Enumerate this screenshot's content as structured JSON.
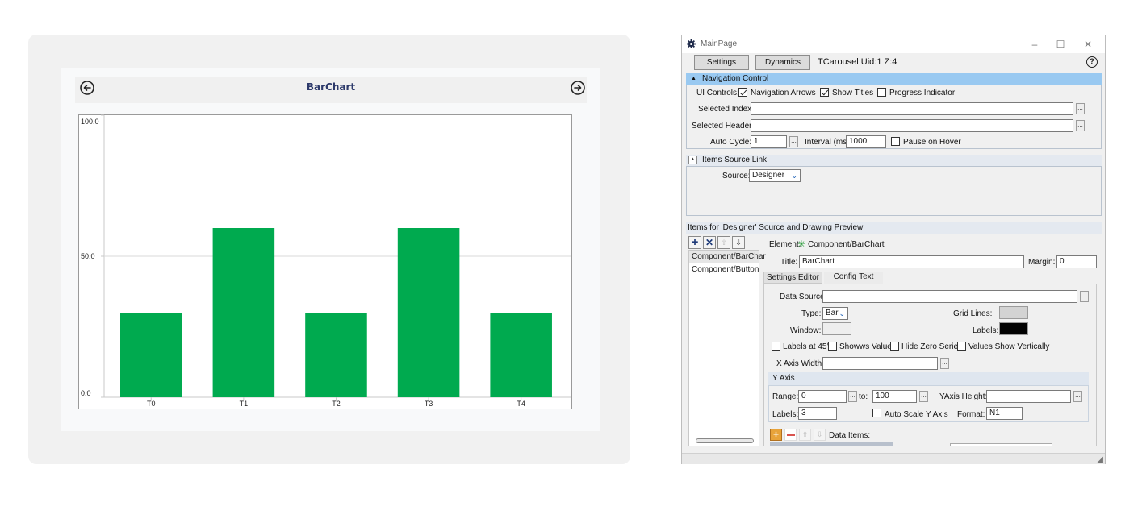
{
  "preview": {
    "title": "BarChart",
    "prev_arrow": "arrow-left-circle-icon",
    "next_arrow": "arrow-right-circle-icon"
  },
  "chart_data": {
    "type": "bar",
    "categories": [
      "T0",
      "T1",
      "T2",
      "T3",
      "T4"
    ],
    "values": [
      30,
      60,
      30,
      60,
      30
    ],
    "ylim": [
      0,
      100
    ],
    "ytick_labels": [
      "0.0",
      "50.0",
      "100.0"
    ],
    "grid": true,
    "bar_color": "#00aa4f"
  },
  "window": {
    "title": "MainPage",
    "app_icon": "gear-icon",
    "minimize": "–",
    "maximize": "☐",
    "close": "✕",
    "settings_btn": "Settings",
    "dynamics_btn": "Dynamics",
    "component_info": "TCarousel Uid:1 Z:4",
    "help_icon": "?"
  },
  "navigation": {
    "header": "Navigation Control",
    "ui_controls_label": "UI Controls:",
    "nav_arrows": {
      "label": "Navigation Arrows",
      "checked": true
    },
    "show_titles": {
      "label": "Show Titles",
      "checked": true
    },
    "progress_indicator": {
      "label": "Progress Indicator",
      "checked": false
    },
    "selected_index_label": "Selected Index:",
    "selected_index_value": "",
    "selected_header_label": "Selected Header:",
    "selected_header_value": "",
    "auto_cycle_label": "Auto Cycle:",
    "auto_cycle_value": "1",
    "interval_label": "Interval (ms)",
    "interval_value": "1000",
    "pause_on_hover": {
      "label": "Pause on Hover",
      "checked": false
    }
  },
  "items_source": {
    "header": "Items Source Link",
    "source_label": "Source:",
    "source_value": "Designer"
  },
  "items": {
    "header": "Items for 'Designer' Source and Drawing Preview",
    "list": [
      "Component/BarChar",
      "Component/Button"
    ],
    "element_label": "Element:",
    "element_value": "Component/BarChart",
    "title_label": "Title:",
    "title_value": "BarChart",
    "margin_label": "Margin:",
    "margin_value": "0",
    "tabs": [
      "Settings Editor",
      "Config Text"
    ]
  },
  "settings": {
    "data_source_label": "Data Source:",
    "data_source_value": "",
    "type_label": "Type:",
    "type_value": "Bar",
    "grid_lines_label": "Grid Lines:",
    "grid_lines_color": "#d3d3d3",
    "window_label": "Window:",
    "window_color": "#eeeeee",
    "labels_label": "Labels:",
    "labels_color": "#000000",
    "labels45": "Labels at 45°",
    "shows_values": "Showws Values",
    "hide_zero": "Hide Zero Series",
    "values_vertical": "Values Show Vertically",
    "x_axis_width_label": "X Axis Width:",
    "x_axis_width_value": ""
  },
  "y_axis": {
    "header": "Y Axis",
    "range_label": "Range:",
    "range_from": "0",
    "to_label": "to:",
    "range_to": "100",
    "height_label": "YAxis Height:",
    "height_value": "",
    "labels_label": "Labels:",
    "labels_value": "3",
    "auto_scale": "Auto Scale Y Axis",
    "format_label": "Format:",
    "format_value": "N1"
  },
  "data_items_label": "Data Items:"
}
